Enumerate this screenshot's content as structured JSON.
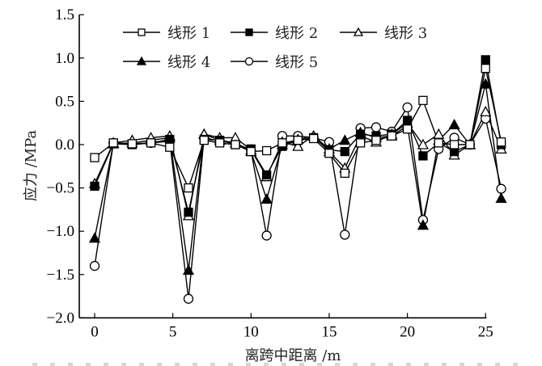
{
  "chart_data": {
    "type": "line",
    "title": "",
    "xlabel": "离跨中距离 /m",
    "ylabel": "应力 /MPa",
    "xlim": [
      -1,
      26.5
    ],
    "ylim": [
      -2.0,
      1.5
    ],
    "xticks": [
      0,
      5,
      10,
      15,
      20,
      25
    ],
    "xtick_labels": [
      "0",
      "5",
      "10",
      "15",
      "20",
      "25"
    ],
    "yticks": [
      1.5,
      1.0,
      0.5,
      0.0,
      -0.5,
      -1.0,
      -1.5,
      -2.0
    ],
    "ytick_labels": [
      "1.5",
      "1.0",
      "0.5",
      "0.0",
      "−0.5",
      "−1.0",
      "−1.5",
      "−2.0"
    ],
    "grid": false,
    "legend_position": "top-inside",
    "x": [
      0,
      1.2,
      2.4,
      3.6,
      4.8,
      6,
      7,
      8,
      9,
      10,
      11,
      12,
      13,
      14,
      15,
      16,
      17,
      18,
      19,
      20,
      21,
      22,
      23,
      24,
      25,
      26
    ],
    "series": [
      {
        "name": "线形 1",
        "marker": "open-square",
        "values": [
          -0.15,
          0.02,
          0.01,
          0.02,
          -0.03,
          -0.5,
          0.05,
          0.02,
          0.0,
          -0.08,
          -0.07,
          0.02,
          0.05,
          0.07,
          -0.1,
          -0.33,
          0.02,
          0.05,
          0.1,
          0.18,
          0.51,
          0.02,
          0.0,
          0.0,
          0.88,
          0.03
        ]
      },
      {
        "name": "线形 2",
        "marker": "filled-square",
        "values": [
          -0.48,
          0.01,
          0.0,
          0.02,
          0.06,
          -0.78,
          0.06,
          0.05,
          0.0,
          -0.05,
          -0.35,
          -0.02,
          0.05,
          0.08,
          -0.06,
          -0.08,
          0.12,
          0.1,
          0.12,
          0.28,
          -0.13,
          0.02,
          -0.08,
          0.0,
          0.98,
          0.0
        ]
      },
      {
        "name": "线形 3",
        "marker": "open-triangle",
        "values": [
          -0.45,
          0.02,
          0.05,
          0.08,
          0.1,
          -0.82,
          0.12,
          0.08,
          0.08,
          -0.06,
          -0.37,
          0.03,
          -0.02,
          0.1,
          -0.08,
          -0.27,
          0.1,
          0.03,
          0.12,
          0.25,
          0.0,
          0.12,
          -0.12,
          0.0,
          0.38,
          -0.05
        ]
      },
      {
        "name": "线形 4",
        "marker": "filled-triangle",
        "values": [
          -1.08,
          0.01,
          0.02,
          0.05,
          0.08,
          -1.45,
          0.12,
          0.05,
          0.02,
          -0.08,
          -0.63,
          0.0,
          0.06,
          0.1,
          -0.05,
          0.05,
          0.14,
          0.08,
          0.1,
          0.22,
          -0.93,
          0.05,
          0.23,
          0.0,
          0.7,
          -0.62
        ]
      },
      {
        "name": "线形 5",
        "marker": "open-circle",
        "values": [
          -1.4,
          0.02,
          0.01,
          0.02,
          0.04,
          -1.78,
          0.08,
          0.04,
          0.02,
          -0.07,
          -1.05,
          0.1,
          0.1,
          0.08,
          0.03,
          -1.04,
          0.19,
          0.2,
          0.15,
          0.43,
          -0.87,
          -0.05,
          0.08,
          0.0,
          0.3,
          -0.51
        ]
      }
    ]
  },
  "colors": {
    "line": "#000000",
    "fill_open": "#ffffff",
    "text": "#222222"
  }
}
